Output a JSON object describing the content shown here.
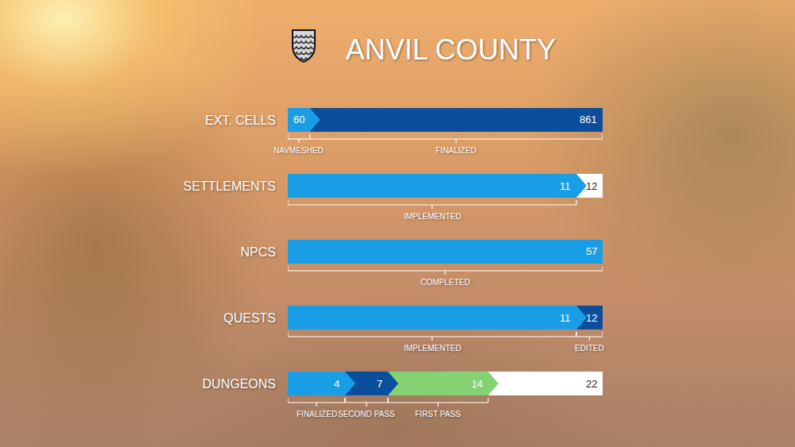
{
  "chart_data": {
    "type": "bar",
    "title": "ANVIL COUNTY",
    "orientation": "horizontal",
    "stacked": false,
    "data_labels": true,
    "tick_labels": "y",
    "rows": [
      {
        "categories": [
          "EXT. CELLS"
        ],
        "xlim": [
          0,
          861
        ],
        "series": [
          {
            "name": "FINALIZED",
            "color": "#0b4e9c",
            "values": [
              861
            ]
          },
          {
            "name": "NAVMESHED",
            "color": "#199ee6",
            "values": [
              60
            ]
          }
        ]
      },
      {
        "categories": [
          "SETTLEMENTS"
        ],
        "xlim": [
          0,
          12
        ],
        "series": [
          {
            "color": "#ffffff",
            "values": [
              12
            ]
          },
          {
            "name": "IMPLEMENTED",
            "color": "#199ee6",
            "values": [
              11
            ]
          }
        ]
      },
      {
        "categories": [
          "NPCS"
        ],
        "xlim": [
          0,
          57
        ],
        "series": [
          {
            "name": "COMPLETED",
            "color": "#199ee6",
            "values": [
              57
            ]
          }
        ]
      },
      {
        "categories": [
          "QUESTS"
        ],
        "xlim": [
          0,
          12
        ],
        "series": [
          {
            "name": "EDITED",
            "color": "#0b4e9c",
            "values": [
              12
            ]
          },
          {
            "name": "IMPLEMENTED",
            "color": "#199ee6",
            "values": [
              11
            ]
          }
        ]
      },
      {
        "categories": [
          "DUNGEONS"
        ],
        "xlim": [
          0,
          22
        ],
        "series": [
          {
            "color": "#ffffff",
            "values": [
              22
            ]
          },
          {
            "name": "FIRST PASS",
            "color": "#84d274",
            "values": [
              14
            ]
          },
          {
            "name": "SECOND PASS",
            "color": "#0b4e9c",
            "values": [
              7
            ]
          },
          {
            "name": "FINALIZED",
            "color": "#199ee6",
            "values": [
              4
            ]
          }
        ]
      }
    ]
  }
}
